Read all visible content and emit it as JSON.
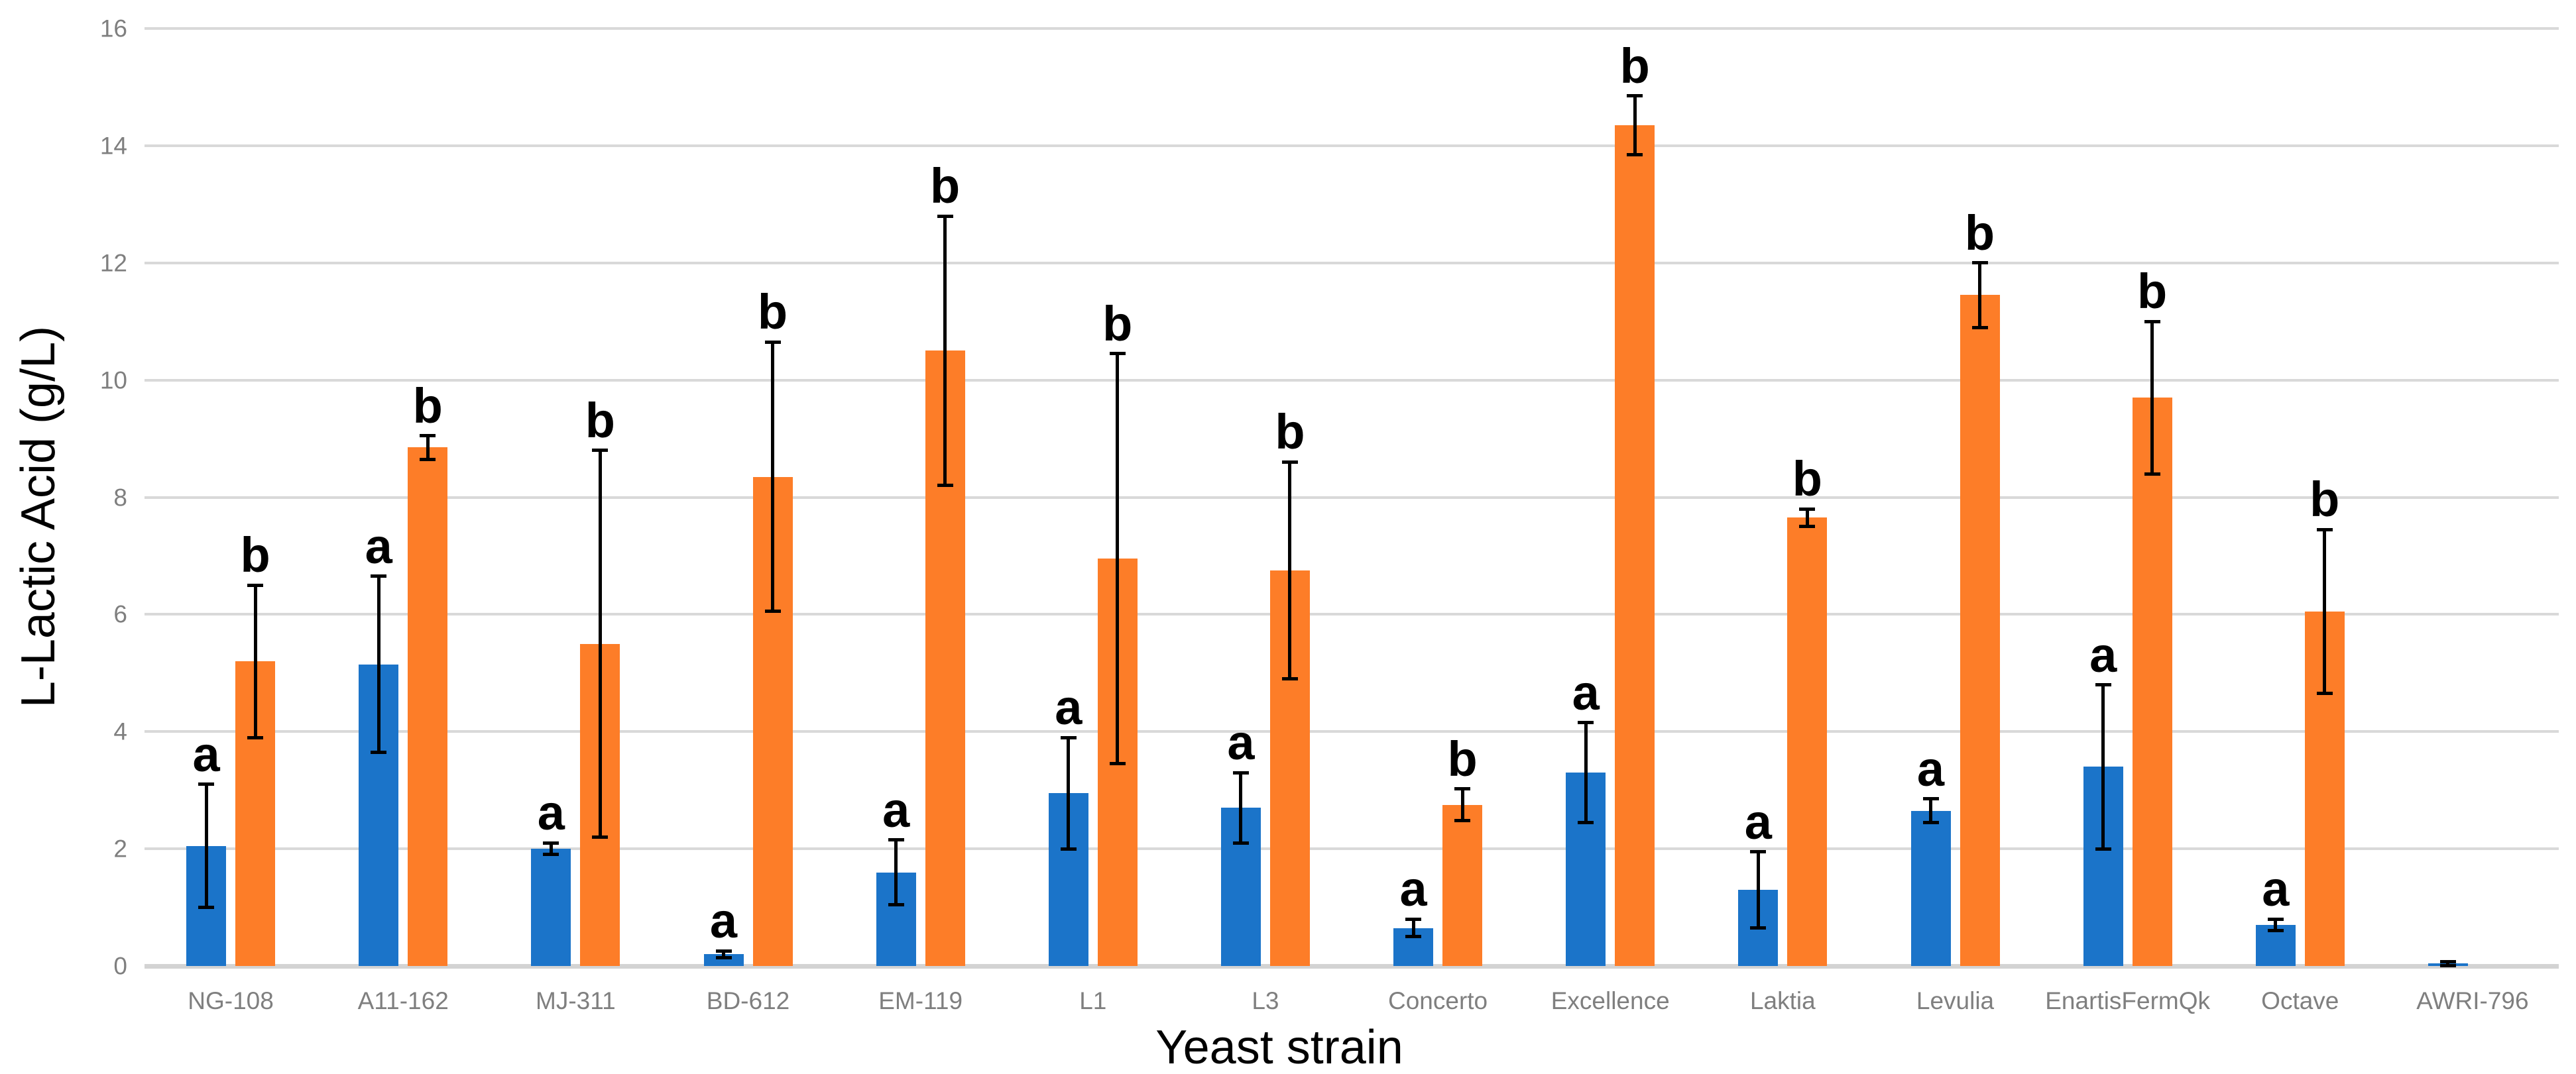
{
  "chart_data": {
    "type": "bar",
    "title": "",
    "xlabel": "Yeast strain",
    "ylabel": "L-Lactic Acid (g/L)",
    "ylim": [
      0,
      16
    ],
    "y_ticks": [
      0,
      2,
      4,
      6,
      8,
      10,
      12,
      14,
      16
    ],
    "grid": true,
    "legend": "none",
    "error_bars": true,
    "categories": [
      "NG-108",
      "A11-162",
      "MJ-311",
      "BD-612",
      "EM-119",
      "L1",
      "L3",
      "Concerto",
      "Excellence",
      "Laktia",
      "Levulia",
      "EnartisFermQk",
      "Octave",
      "AWRI-796"
    ],
    "series": [
      {
        "name": "blue",
        "color": "#1B74C9",
        "values": [
          2.05,
          5.15,
          2.0,
          0.2,
          1.6,
          2.95,
          2.7,
          0.65,
          3.3,
          1.3,
          2.65,
          3.4,
          0.7,
          0.04
        ],
        "errors": [
          1.05,
          1.5,
          0.1,
          0.06,
          0.55,
          0.95,
          0.6,
          0.15,
          0.85,
          0.65,
          0.2,
          1.4,
          0.1,
          0.03
        ],
        "sig_letters": [
          "a",
          "a",
          "a",
          "a",
          "a",
          "a",
          "a",
          "a",
          "a",
          "a",
          "a",
          "a",
          "a",
          null
        ]
      },
      {
        "name": "orange",
        "color": "#FD7D28",
        "values": [
          5.2,
          8.85,
          5.5,
          8.35,
          10.5,
          6.95,
          6.75,
          2.75,
          14.35,
          7.65,
          11.45,
          9.7,
          6.05,
          0
        ],
        "errors": [
          1.3,
          0.2,
          3.3,
          2.3,
          2.3,
          3.5,
          1.85,
          0.27,
          0.5,
          0.15,
          0.55,
          1.3,
          1.4,
          0
        ],
        "sig_letters": [
          "b",
          "b",
          "b",
          "b",
          "b",
          "b",
          "b",
          "b",
          "b",
          "b",
          "b",
          "b",
          "b",
          null
        ]
      }
    ]
  },
  "style": {
    "background": "#FFFFFF",
    "grid_color": "#D9D9D9",
    "axis_line_color": "#D3D3D3",
    "tick_label_color": "#7F7F7F",
    "category_label_color": "#7F7F7F",
    "axis_title_color": "#000000",
    "significance_letter_color": "#000000",
    "error_bar_color": "#000000"
  }
}
